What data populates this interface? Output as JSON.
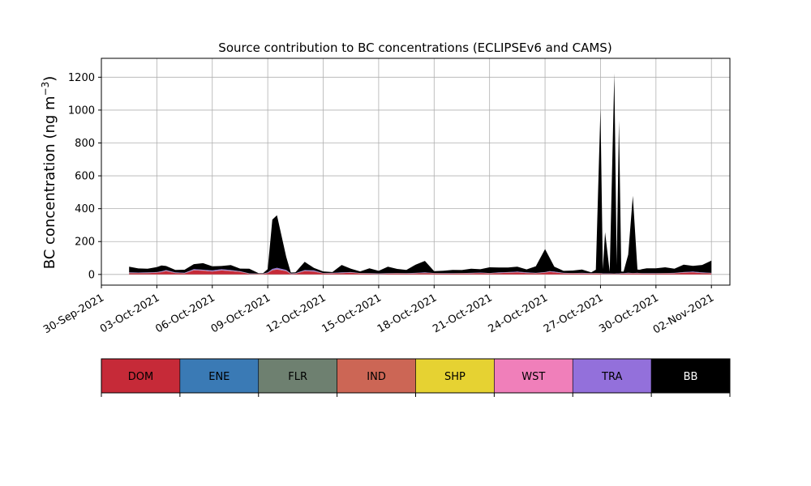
{
  "chart_data": {
    "type": "area",
    "stacked": true,
    "title": "Source contribution to BC concentrations (ECLIPSEv6 and CAMS)",
    "xlabel": "",
    "ylabel": "BC concentration (ng m",
    "ylabel_sup": "−3",
    "ylabel_close": ")",
    "xlim": [
      "2021-09-30T00:00",
      "2021-11-03T00:00"
    ],
    "ylim": [
      -65,
      1315
    ],
    "grid": true,
    "x_ticks": [
      "30-Sep-2021",
      "03-Oct-2021",
      "06-Oct-2021",
      "09-Oct-2021",
      "12-Oct-2021",
      "15-Oct-2021",
      "18-Oct-2021",
      "21-Oct-2021",
      "24-Oct-2021",
      "27-Oct-2021",
      "30-Oct-2021",
      "02-Nov-2021"
    ],
    "y_ticks": [
      0,
      200,
      400,
      600,
      800,
      1000,
      1200
    ],
    "x": [
      "2021-10-01T12:00",
      "2021-10-02T00:00",
      "2021-10-02T12:00",
      "2021-10-03T00:00",
      "2021-10-03T06:00",
      "2021-10-03T12:00",
      "2021-10-04T00:00",
      "2021-10-04T12:00",
      "2021-10-05T00:00",
      "2021-10-05T12:00",
      "2021-10-06T00:00",
      "2021-10-06T12:00",
      "2021-10-07T00:00",
      "2021-10-07T12:00",
      "2021-10-08T00:00",
      "2021-10-08T12:00",
      "2021-10-08T18:00",
      "2021-10-09T00:00",
      "2021-10-09T06:00",
      "2021-10-09T12:00",
      "2021-10-10T00:00",
      "2021-10-10T06:00",
      "2021-10-10T12:00",
      "2021-10-11T00:00",
      "2021-10-11T12:00",
      "2021-10-12T00:00",
      "2021-10-12T12:00",
      "2021-10-13T00:00",
      "2021-10-13T12:00",
      "2021-10-14T00:00",
      "2021-10-14T12:00",
      "2021-10-15T00:00",
      "2021-10-15T12:00",
      "2021-10-16T00:00",
      "2021-10-16T12:00",
      "2021-10-17T00:00",
      "2021-10-17T12:00",
      "2021-10-18T00:00",
      "2021-10-18T12:00",
      "2021-10-19T00:00",
      "2021-10-19T12:00",
      "2021-10-20T00:00",
      "2021-10-20T12:00",
      "2021-10-21T00:00",
      "2021-10-21T12:00",
      "2021-10-22T00:00",
      "2021-10-22T12:00",
      "2021-10-23T00:00",
      "2021-10-23T12:00",
      "2021-10-24T00:00",
      "2021-10-24T06:00",
      "2021-10-24T12:00",
      "2021-10-25T00:00",
      "2021-10-25T12:00",
      "2021-10-26T00:00",
      "2021-10-26T12:00",
      "2021-10-26T18:00",
      "2021-10-27T00:00",
      "2021-10-27T03:00",
      "2021-10-27T06:00",
      "2021-10-27T12:00",
      "2021-10-27T18:00",
      "2021-10-27T21:00",
      "2021-10-28T00:00",
      "2021-10-28T03:00",
      "2021-10-28T06:00",
      "2021-10-28T12:00",
      "2021-10-28T18:00",
      "2021-10-29T00:00",
      "2021-10-29T03:00",
      "2021-10-29T06:00",
      "2021-10-29T12:00",
      "2021-10-30T00:00",
      "2021-10-30T12:00",
      "2021-10-31T00:00",
      "2021-10-31T12:00",
      "2021-11-01T00:00",
      "2021-11-01T12:00",
      "2021-11-02T00:00"
    ],
    "series": [
      {
        "name": "DOM",
        "color": "#c62a38",
        "values": [
          8,
          7,
          8,
          10,
          14,
          20,
          8,
          6,
          25,
          22,
          18,
          24,
          20,
          15,
          3,
          2,
          2,
          8,
          25,
          30,
          20,
          3,
          4,
          20,
          18,
          5,
          6,
          8,
          10,
          5,
          4,
          3,
          4,
          5,
          4,
          6,
          8,
          5,
          4,
          4,
          5,
          6,
          7,
          5,
          8,
          10,
          12,
          8,
          6,
          10,
          15,
          12,
          6,
          5,
          6,
          4,
          5,
          4,
          3,
          3,
          3,
          2,
          3,
          3,
          4,
          4,
          6,
          5,
          6,
          5,
          4,
          4,
          4,
          5,
          6,
          10,
          12,
          8,
          6
        ]
      },
      {
        "name": "ENE",
        "color": "#3a7ab5",
        "values": [
          0.5,
          0.5,
          0.5,
          0.5,
          0.5,
          0.5,
          0.5,
          0.5,
          0.5,
          0.5,
          0.5,
          0.5,
          0.5,
          0.5,
          0.5,
          0.5,
          0.5,
          0.5,
          0.5,
          0.5,
          0.5,
          0.5,
          0.5,
          0.5,
          0.5,
          0.5,
          0.5,
          0.5,
          0.5,
          0.5,
          0.5,
          0.5,
          0.5,
          0.5,
          0.5,
          0.5,
          0.5,
          0.5,
          0.5,
          0.5,
          0.5,
          0.5,
          0.5,
          0.5,
          0.5,
          0.5,
          0.5,
          0.5,
          0.5,
          0.5,
          0.5,
          0.5,
          0.5,
          0.5,
          0.5,
          0.5,
          0.5,
          0.5,
          0.5,
          0.5,
          0.5,
          0.5,
          0.5,
          0.5,
          0.5,
          0.5,
          0.5,
          0.5,
          0.5,
          0.5,
          0.5,
          0.5,
          0.5,
          0.5,
          0.5,
          0.5,
          0.5,
          0.5,
          0.5
        ]
      },
      {
        "name": "FLR",
        "color": "#6e8070",
        "values": [
          0.3,
          0.3,
          0.3,
          0.3,
          0.3,
          0.3,
          0.3,
          0.3,
          0.3,
          0.3,
          0.3,
          0.3,
          0.3,
          0.3,
          0.3,
          0.3,
          0.3,
          0.3,
          0.3,
          0.3,
          0.3,
          0.3,
          0.3,
          0.3,
          0.3,
          0.3,
          0.3,
          0.3,
          0.3,
          0.3,
          0.3,
          0.3,
          0.3,
          0.3,
          0.3,
          0.3,
          0.3,
          0.3,
          0.3,
          0.3,
          0.3,
          0.3,
          0.3,
          0.3,
          0.3,
          0.3,
          0.3,
          0.3,
          0.3,
          0.3,
          0.3,
          0.3,
          0.3,
          0.3,
          0.3,
          0.3,
          0.3,
          0.3,
          0.3,
          0.3,
          0.3,
          0.3,
          0.3,
          0.3,
          0.3,
          0.3,
          0.3,
          0.3,
          0.3,
          0.3,
          0.3,
          0.3,
          0.3,
          0.3,
          0.3,
          0.3,
          0.3,
          0.3,
          0.3
        ]
      },
      {
        "name": "IND",
        "color": "#cc6655",
        "values": [
          1,
          1,
          1,
          1,
          1,
          1,
          1,
          1,
          1,
          1,
          1,
          1,
          1,
          1,
          1,
          1,
          1,
          1,
          1,
          1,
          1,
          1,
          1,
          1,
          1,
          1,
          1,
          1,
          1,
          1,
          1,
          1,
          1,
          1,
          1,
          1,
          1,
          1,
          1,
          1,
          1,
          1,
          1,
          1,
          1,
          1,
          1,
          1,
          1,
          1,
          1,
          1,
          1,
          1,
          1,
          1,
          1,
          1,
          1,
          1,
          1,
          1,
          1,
          1,
          1,
          1,
          1,
          1,
          1,
          1,
          1,
          1,
          1,
          1,
          1,
          1,
          1,
          1,
          1
        ]
      },
      {
        "name": "SHP",
        "color": "#e6d232",
        "values": [
          0.2,
          0.2,
          0.2,
          0.2,
          0.2,
          0.2,
          0.2,
          0.2,
          0.2,
          0.2,
          0.2,
          0.2,
          0.2,
          0.2,
          0.2,
          0.2,
          0.2,
          0.2,
          0.2,
          0.2,
          0.2,
          0.2,
          0.2,
          0.2,
          0.2,
          0.2,
          0.2,
          0.2,
          0.2,
          0.2,
          0.2,
          0.2,
          0.2,
          0.2,
          0.2,
          0.2,
          0.2,
          0.2,
          0.2,
          0.2,
          0.2,
          0.2,
          0.2,
          0.2,
          0.2,
          0.2,
          0.2,
          0.2,
          0.2,
          0.2,
          0.2,
          0.2,
          0.2,
          0.2,
          0.2,
          0.2,
          0.2,
          0.2,
          0.2,
          0.2,
          0.2,
          0.2,
          0.2,
          0.2,
          0.2,
          0.2,
          0.2,
          0.2,
          0.2,
          0.2,
          0.2,
          0.2,
          0.2,
          0.2,
          0.2,
          0.2,
          0.2,
          0.2,
          0.2
        ]
      },
      {
        "name": "WST",
        "color": "#f07fba",
        "values": [
          0.5,
          0.5,
          0.5,
          0.5,
          0.5,
          0.5,
          0.5,
          0.5,
          0.5,
          0.5,
          0.5,
          0.5,
          0.5,
          0.5,
          0.5,
          0.5,
          0.5,
          0.5,
          0.5,
          0.5,
          0.5,
          0.5,
          0.5,
          0.5,
          0.5,
          0.5,
          0.5,
          0.5,
          0.5,
          0.5,
          0.5,
          0.5,
          0.5,
          0.5,
          0.5,
          0.5,
          0.5,
          0.5,
          0.5,
          0.5,
          0.5,
          0.5,
          0.5,
          0.5,
          0.5,
          0.5,
          0.5,
          0.5,
          0.5,
          0.5,
          0.5,
          0.5,
          0.5,
          0.5,
          0.5,
          0.5,
          0.5,
          0.5,
          0.5,
          0.5,
          0.5,
          0.5,
          0.5,
          0.5,
          0.5,
          0.5,
          0.5,
          0.5,
          0.5,
          0.5,
          0.5,
          0.5,
          0.5,
          0.5,
          0.5,
          0.5,
          0.5,
          0.5,
          0.5
        ]
      },
      {
        "name": "TRA",
        "color": "#9370db",
        "values": [
          2,
          2,
          2,
          2,
          3,
          4,
          2,
          2,
          5,
          4,
          4,
          5,
          4,
          3,
          1,
          1,
          1,
          2,
          6,
          8,
          5,
          1,
          1,
          4,
          4,
          1,
          1,
          2,
          2,
          1,
          1,
          1,
          1,
          1,
          1,
          1,
          2,
          1,
          1,
          1,
          1,
          1,
          2,
          1,
          2,
          2,
          3,
          2,
          1,
          2,
          3,
          3,
          1,
          1,
          1,
          1,
          1,
          1,
          1,
          1,
          1,
          1,
          1,
          1,
          1,
          1,
          2,
          1,
          1,
          1,
          1,
          1,
          1,
          1,
          1,
          2,
          3,
          2,
          1
        ]
      },
      {
        "name": "BB",
        "color": "#000000",
        "values": [
          35,
          25,
          22,
          30,
          35,
          25,
          15,
          18,
          30,
          40,
          25,
          20,
          30,
          15,
          28,
          2,
          2,
          20,
          300,
          320,
          80,
          5,
          5,
          50,
          15,
          10,
          5,
          45,
          20,
          10,
          30,
          15,
          40,
          25,
          20,
          50,
          70,
          12,
          15,
          20,
          18,
          25,
          20,
          35,
          30,
          28,
          30,
          18,
          40,
          140,
          80,
          30,
          12,
          15,
          20,
          5,
          20,
          1000,
          25,
          250,
          10,
          1220,
          50,
          930,
          10,
          10,
          110,
          470,
          20,
          20,
          25,
          30,
          30,
          35,
          25,
          45,
          35,
          45,
          75
        ]
      }
    ],
    "legend": {
      "placement": "bottom",
      "labels": [
        "DOM",
        "ENE",
        "FLR",
        "IND",
        "SHP",
        "WST",
        "TRA",
        "BB"
      ],
      "colors": [
        "#c62a38",
        "#3a7ab5",
        "#6e8070",
        "#cc6655",
        "#e6d232",
        "#f07fba",
        "#9370db",
        "#000000"
      ],
      "text_colors": [
        "#000000",
        "#000000",
        "#000000",
        "#000000",
        "#000000",
        "#000000",
        "#000000",
        "#ffffff"
      ]
    }
  }
}
